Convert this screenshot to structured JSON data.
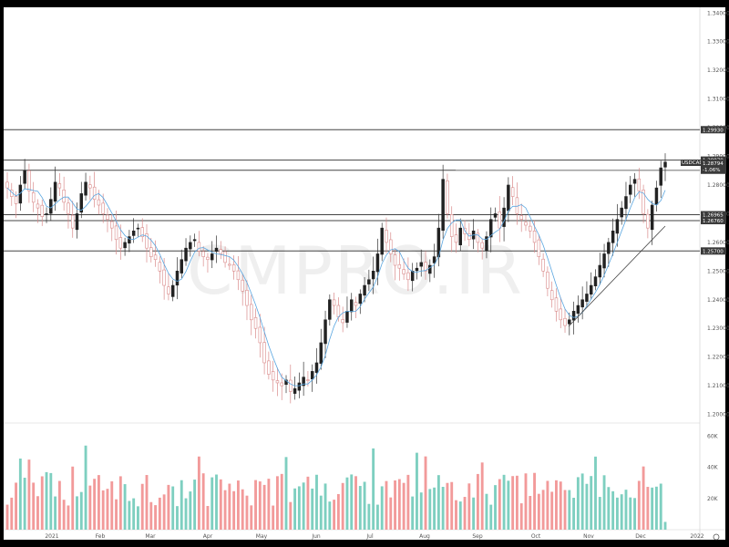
{
  "chart_data": {
    "type": "candlestick",
    "symbol": "USDCAD",
    "last_price": "1.28794",
    "change_pct": "-1.06%",
    "x_labels": [
      "2021",
      "Feb",
      "Mar",
      "Apr",
      "May",
      "Jun",
      "Jul",
      "Aug",
      "Sep",
      "Oct",
      "Nov",
      "Dec",
      "2022"
    ],
    "y_ticks": [
      "1.34000",
      "1.33000",
      "1.32000",
      "1.31000",
      "1.30000",
      "1.29000",
      "1.28000",
      "1.27000",
      "1.26000",
      "1.25000",
      "1.24000",
      "1.23000",
      "1.22000",
      "1.21000",
      "1.20000"
    ],
    "ylim": [
      1.197,
      1.342
    ],
    "levels": [
      {
        "value": 1.2993,
        "label": "1.29930"
      },
      {
        "value": 1.2887,
        "label": "1.28870"
      },
      {
        "value": 1.28516,
        "label": "1.28516"
      },
      {
        "value": 1.26965,
        "label": "1.26965"
      },
      {
        "value": 1.2676,
        "label": "1.26760"
      },
      {
        "value": 1.257,
        "label": "1.25700"
      }
    ],
    "trendline": {
      "from": [
        "Oct-21",
        1.2295
      ],
      "to": [
        "Dec-10",
        1.265
      ]
    },
    "moving_average": "short-period MA (blue)",
    "volume_ticks": [
      "60K",
      "40K",
      "20K"
    ],
    "volume_max": 65000,
    "closes": [
      1.279,
      1.276,
      1.2735,
      1.28,
      1.285,
      1.278,
      1.274,
      1.272,
      1.269,
      1.27,
      1.275,
      1.281,
      1.279,
      1.274,
      1.27,
      1.265,
      1.27,
      1.277,
      1.281,
      1.279,
      1.275,
      1.273,
      1.27,
      1.268,
      1.265,
      1.261,
      1.258,
      1.26,
      1.262,
      1.264,
      1.265,
      1.262,
      1.258,
      1.255,
      1.254,
      1.25,
      1.245,
      1.242,
      1.245,
      1.25,
      1.254,
      1.258,
      1.26,
      1.261,
      1.257,
      1.255,
      1.254,
      1.256,
      1.258,
      1.256,
      1.253,
      1.252,
      1.25,
      1.247,
      1.243,
      1.238,
      1.233,
      1.23,
      1.225,
      1.218,
      1.214,
      1.212,
      1.211,
      1.21,
      1.212,
      1.208,
      1.209,
      1.211,
      1.213,
      1.212,
      1.215,
      1.218,
      1.225,
      1.233,
      1.24,
      1.238,
      1.234,
      1.232,
      1.236,
      1.24,
      1.238,
      1.242,
      1.245,
      1.247,
      1.25,
      1.256,
      1.265,
      1.26,
      1.256,
      1.252,
      1.251,
      1.249,
      1.247,
      1.25,
      1.251,
      1.253,
      1.25,
      1.252,
      1.255,
      1.265,
      1.282,
      1.27,
      1.262,
      1.26,
      1.265,
      1.263,
      1.261,
      1.264,
      1.26,
      1.258,
      1.262,
      1.268,
      1.27,
      1.265,
      1.272,
      1.28,
      1.276,
      1.27,
      1.268,
      1.266,
      1.264,
      1.26,
      1.255,
      1.25,
      1.244,
      1.24,
      1.236,
      1.233,
      1.231,
      1.233,
      1.236,
      1.238,
      1.24,
      1.242,
      1.245,
      1.248,
      1.252,
      1.256,
      1.26,
      1.264,
      1.268,
      1.272,
      1.276,
      1.28,
      1.282,
      1.278,
      1.27,
      1.265,
      1.273,
      1.279,
      1.286,
      1.288
    ]
  }
}
